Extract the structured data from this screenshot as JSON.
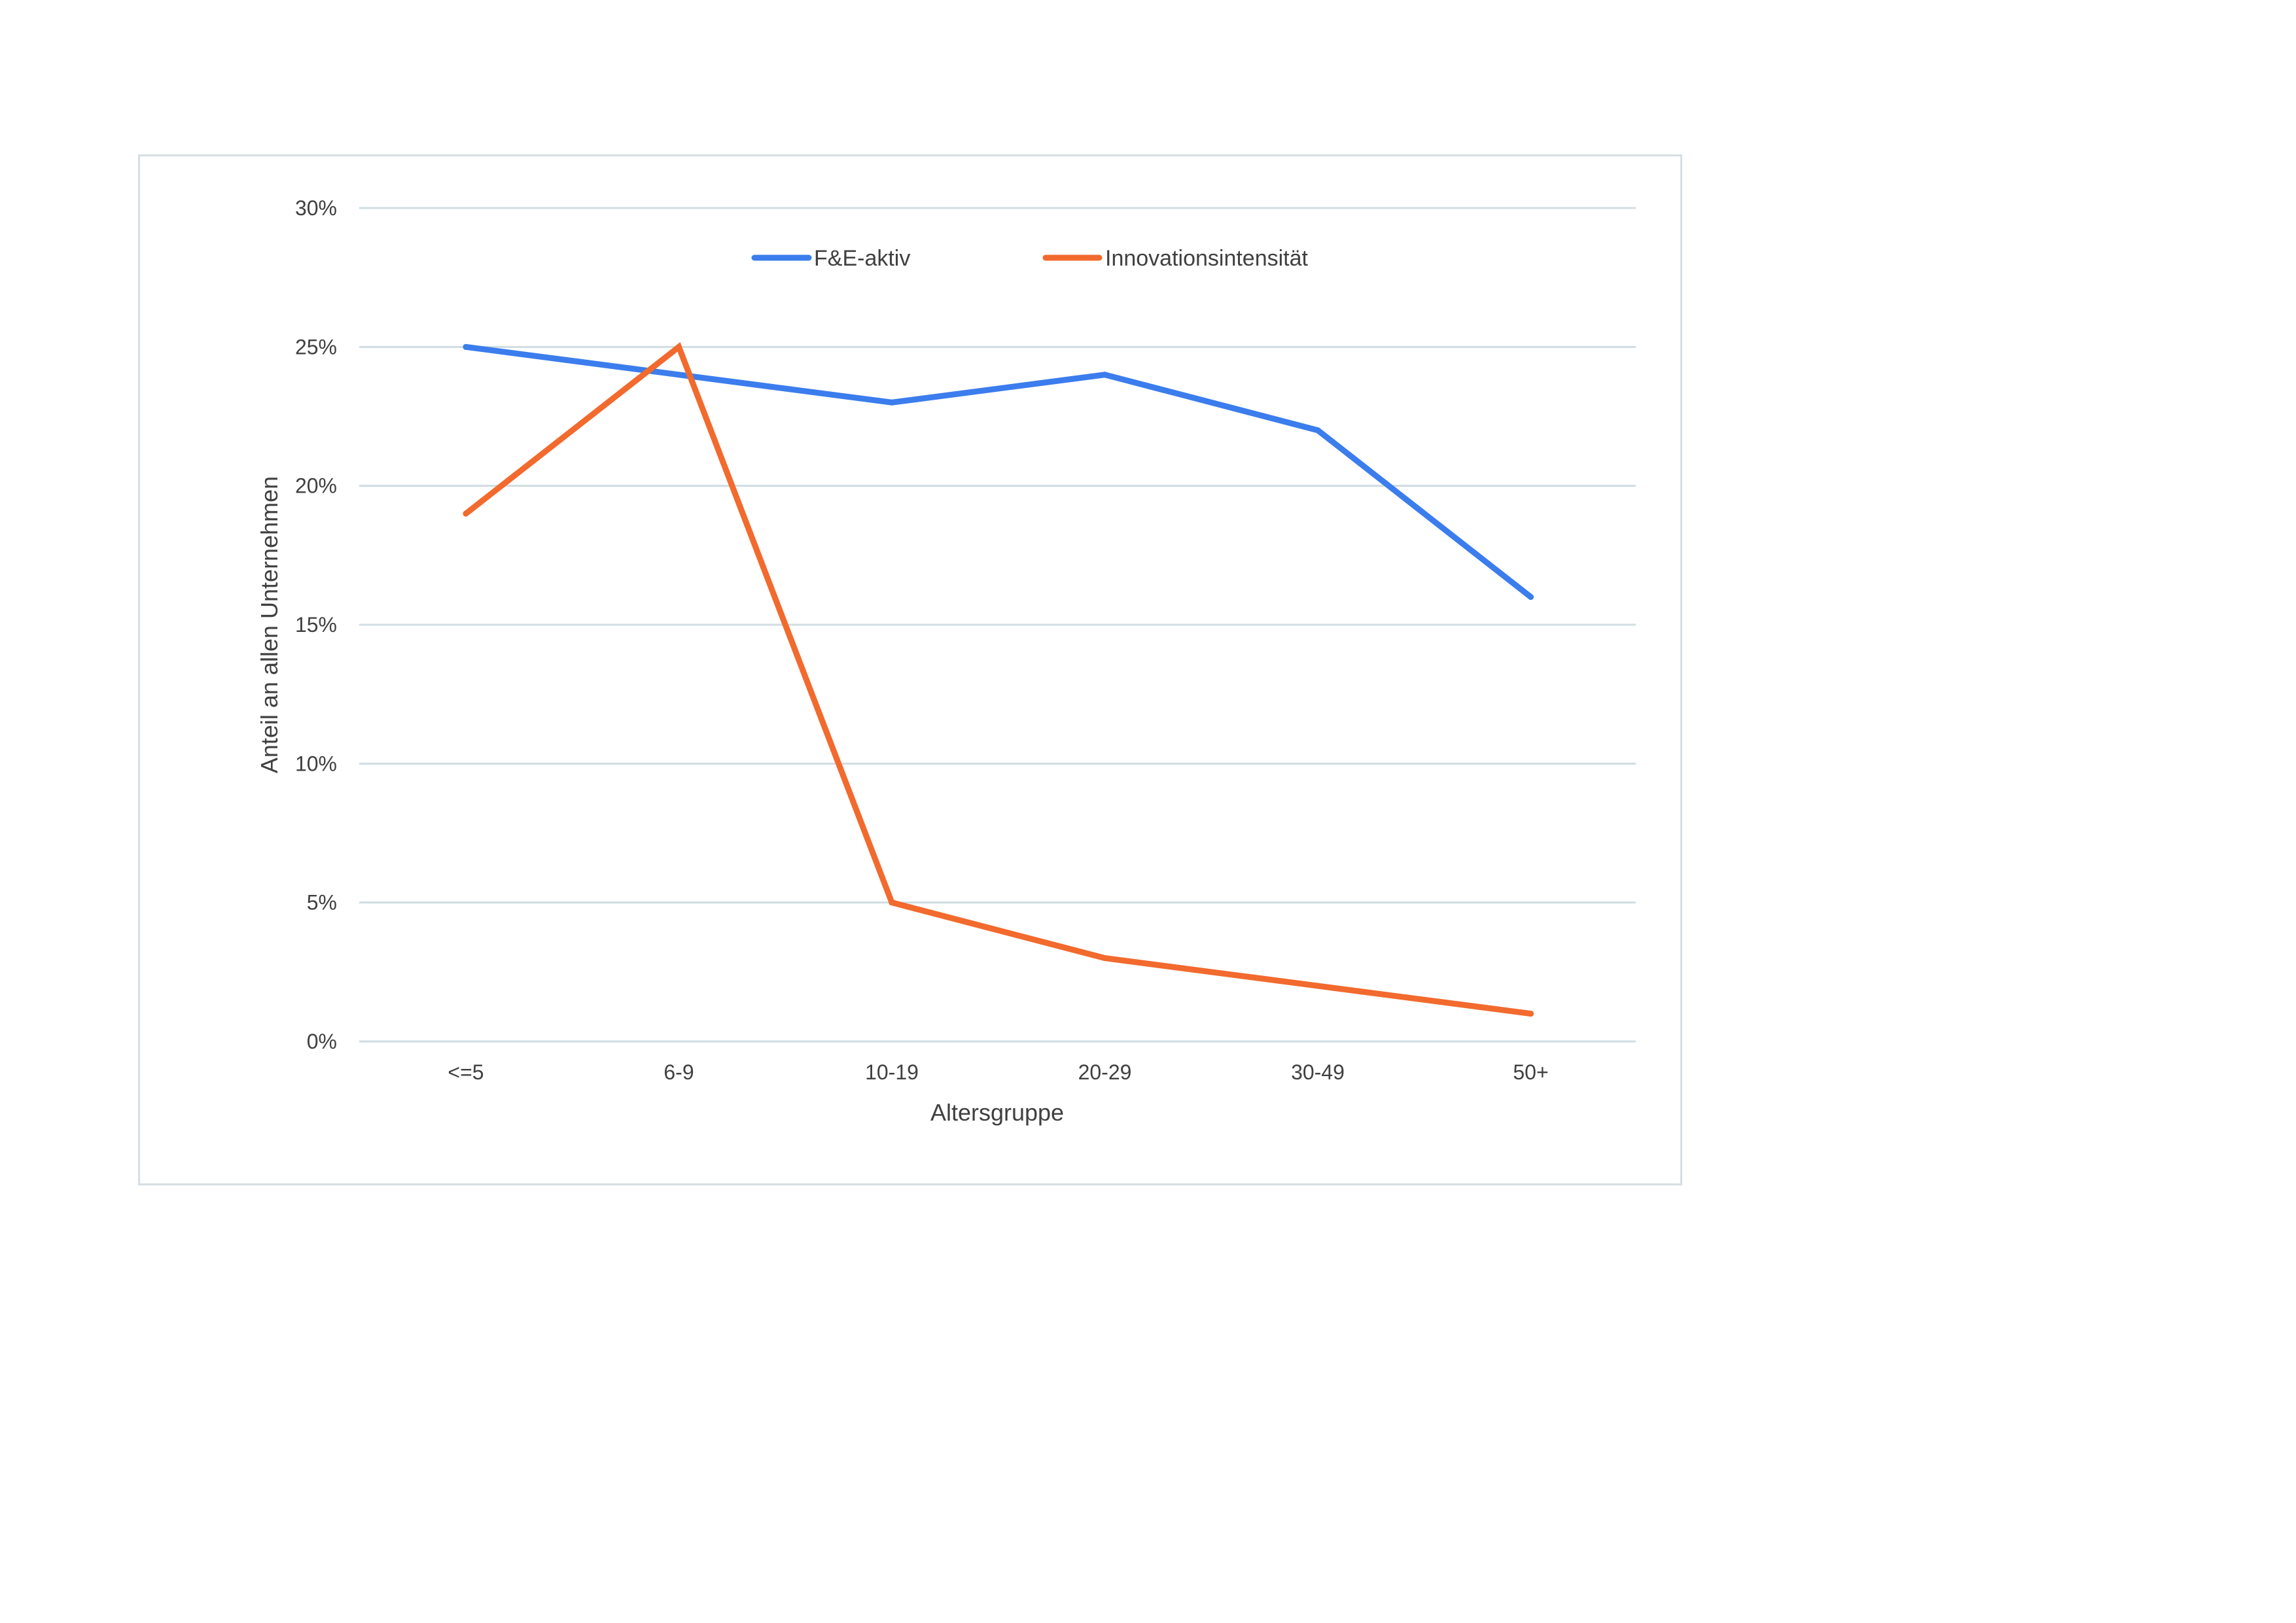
{
  "chart_data": {
    "type": "line",
    "categories": [
      "<=5",
      "6-9",
      "10-19",
      "20-29",
      "30-49",
      "50+"
    ],
    "series": [
      {
        "name": "F&E-aktiv",
        "values": [
          25,
          24,
          23,
          24,
          22,
          16
        ],
        "color": "#3b7ded"
      },
      {
        "name": "Innovationsintensität",
        "values": [
          19,
          25,
          5,
          3,
          2,
          1
        ],
        "color": "#f26a2e"
      }
    ],
    "xlabel": "Altersgruppe",
    "ylabel": "Anteil an allen Unternehmen",
    "ylim": [
      0,
      30
    ],
    "yticks": [
      0,
      5,
      10,
      15,
      20,
      25,
      30
    ],
    "ytick_labels": [
      "0%",
      "5%",
      "10%",
      "15%",
      "20%",
      "25%",
      "30%"
    ],
    "grid": true,
    "legend_position": "top-center"
  }
}
